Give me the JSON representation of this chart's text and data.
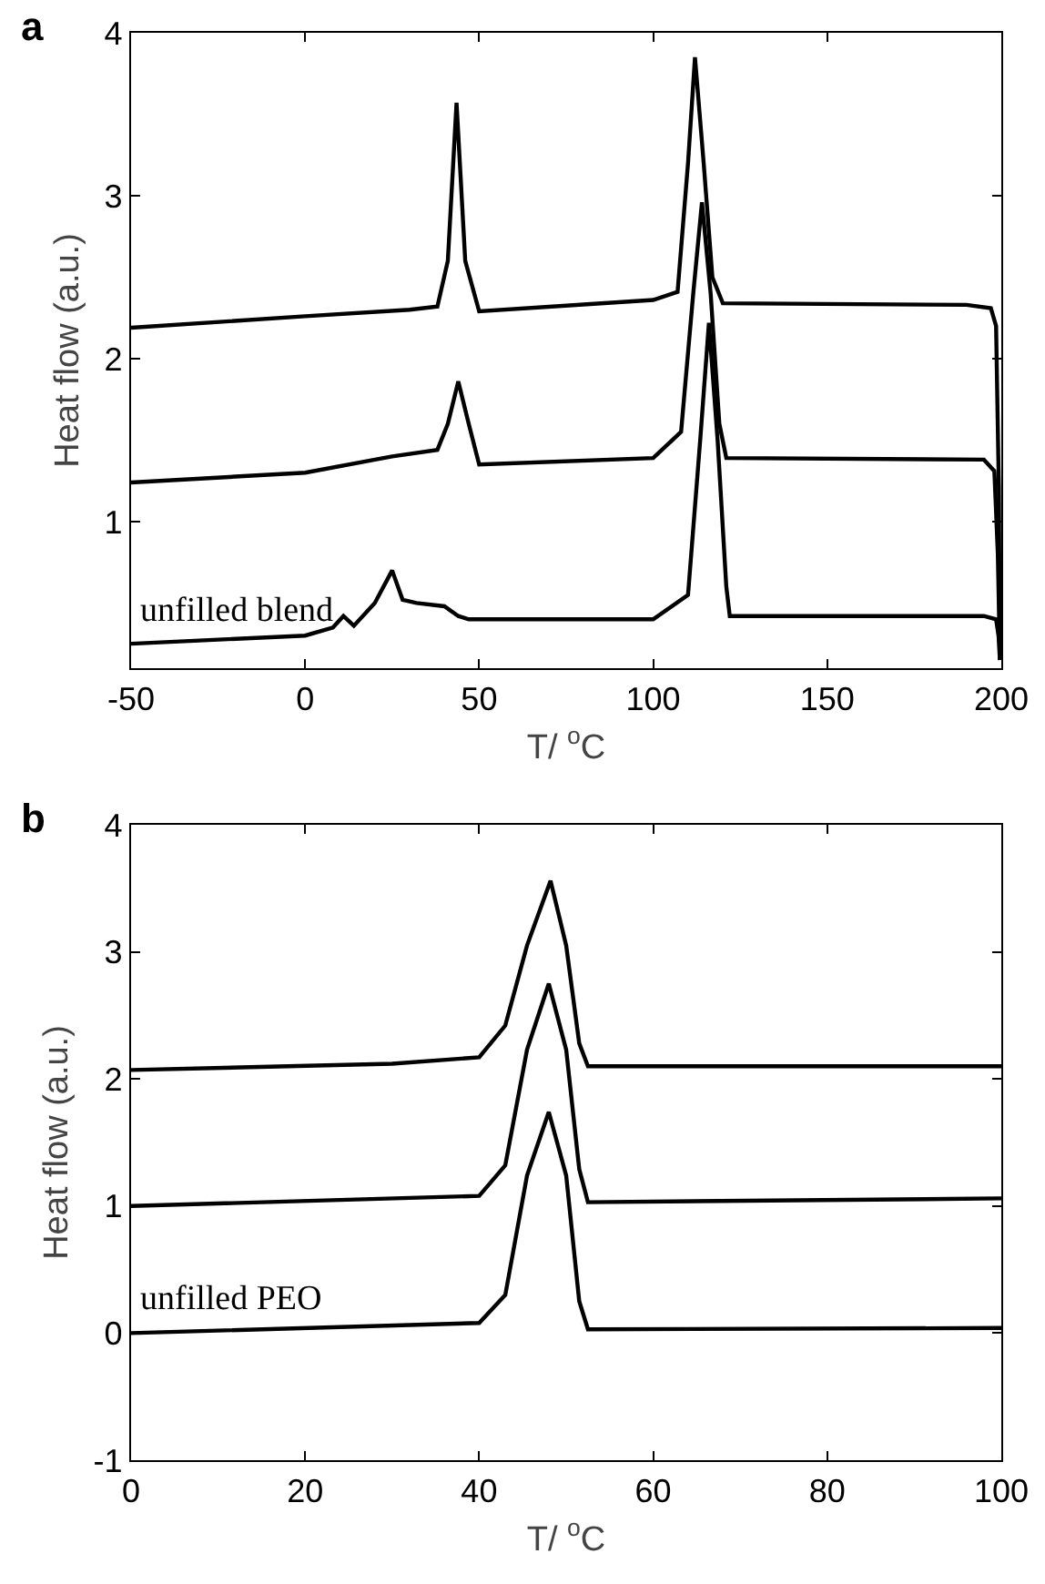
{
  "chart_data": [
    {
      "type": "line",
      "title": "a",
      "xlabel": "T/ $^{o}$C",
      "ylabel": "Heat flow (a.u.)",
      "xlim": [
        -50,
        200
      ],
      "xticks": [
        -50,
        0,
        50,
        100,
        150,
        200
      ],
      "ylim": [
        0.1,
        4
      ],
      "yticks": [
        1,
        2,
        3,
        4
      ],
      "grid": false,
      "legend": false,
      "marker": "none",
      "line_style": "solid",
      "series": [
        {
          "color": "#000000",
          "x": [
            -50,
            0,
            30,
            38,
            41,
            43.5,
            46,
            50,
            100,
            107,
            110,
            112,
            114.5,
            117,
            120,
            190,
            197,
            198.5,
            199.3,
            199.6
          ],
          "values": [
            2.19,
            2.26,
            2.3,
            2.32,
            2.6,
            3.57,
            2.6,
            2.29,
            2.36,
            2.41,
            3.2,
            3.85,
            3.2,
            2.5,
            2.34,
            2.33,
            2.31,
            2.2,
            1.2,
            0.15
          ]
        },
        {
          "color": "#000000",
          "x": [
            -50,
            0,
            25,
            38,
            41,
            44,
            47,
            50,
            100,
            108,
            111.5,
            114,
            116.5,
            119,
            121,
            195,
            198,
            199,
            199.6
          ],
          "values": [
            1.24,
            1.3,
            1.4,
            1.44,
            1.6,
            1.86,
            1.6,
            1.35,
            1.39,
            1.55,
            2.4,
            2.96,
            2.4,
            1.6,
            1.39,
            1.38,
            1.31,
            0.8,
            0.15
          ]
        },
        {
          "name": "unfilled blend",
          "color": "#000000",
          "x": [
            -50,
            0,
            8,
            11,
            14,
            20,
            25,
            28,
            32,
            40,
            44,
            47,
            100,
            110,
            113.5,
            116,
            118.5,
            121,
            122,
            195,
            198.5,
            199.2,
            199.6
          ],
          "values": [
            0.25,
            0.3,
            0.35,
            0.42,
            0.36,
            0.5,
            0.7,
            0.52,
            0.5,
            0.48,
            0.42,
            0.4,
            0.4,
            0.55,
            1.5,
            2.22,
            1.5,
            0.6,
            0.42,
            0.42,
            0.4,
            0.3,
            0.15
          ]
        }
      ]
    },
    {
      "type": "line",
      "title": "b",
      "xlabel": "T/ $^{o}$C",
      "ylabel": "Heat flow (a.u.)",
      "xlim": [
        0,
        100
      ],
      "xticks": [
        0,
        20,
        40,
        60,
        80,
        100
      ],
      "ylim": [
        -1,
        4
      ],
      "yticks": [
        -1,
        0,
        1,
        2,
        3,
        4
      ],
      "grid": false,
      "legend": false,
      "marker": "none",
      "line_style": "solid",
      "series": [
        {
          "color": "#000000",
          "x": [
            0,
            30,
            40,
            43,
            45.5,
            48.2,
            50,
            51.5,
            52.5,
            100
          ],
          "values": [
            2.07,
            2.12,
            2.17,
            2.42,
            3.05,
            3.56,
            3.05,
            2.28,
            2.1,
            2.1
          ]
        },
        {
          "color": "#000000",
          "x": [
            0,
            40,
            43,
            45.5,
            48,
            50,
            51.5,
            52.5,
            100
          ],
          "values": [
            1.0,
            1.08,
            1.32,
            2.23,
            2.75,
            2.23,
            1.29,
            1.03,
            1.06
          ]
        },
        {
          "name": "unfilled PEO",
          "color": "#000000",
          "x": [
            0,
            40,
            43,
            45.5,
            48,
            50,
            51.5,
            52.5,
            100
          ],
          "values": [
            0.0,
            0.08,
            0.3,
            1.24,
            1.74,
            1.24,
            0.25,
            0.03,
            0.04
          ]
        }
      ]
    }
  ]
}
